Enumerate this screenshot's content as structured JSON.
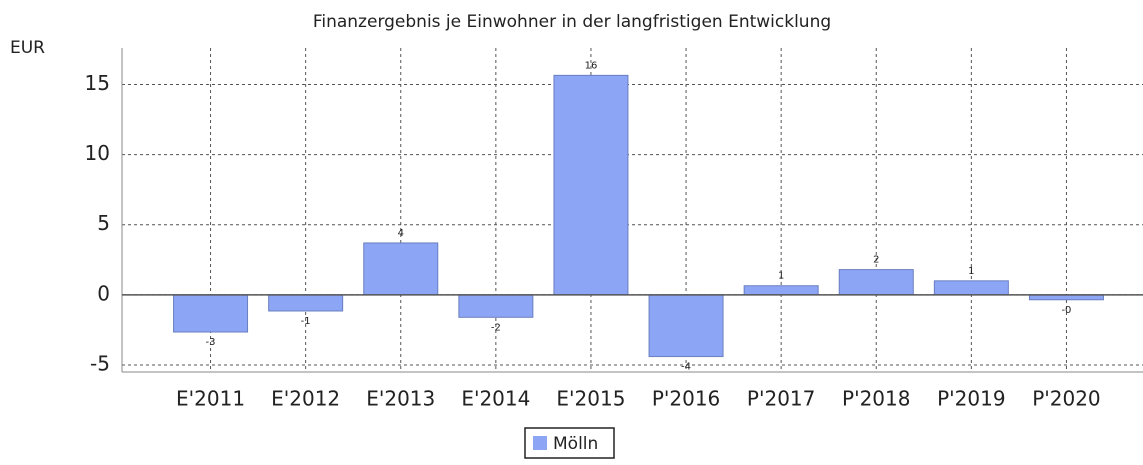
{
  "chart_data": {
    "type": "bar",
    "title": "Finanzergebnis je Einwohner in der langfristigen Entwicklung",
    "y_label": "EUR",
    "categories": [
      "E'2011",
      "E'2012",
      "E'2013",
      "E'2014",
      "E'2015",
      "P'2016",
      "P'2017",
      "P'2018",
      "P'2019",
      "P'2020"
    ],
    "series": [
      {
        "name": "Mölln",
        "color": "#8ca5f5",
        "values": [
          -2.65,
          -1.15,
          3.7,
          -1.6,
          15.65,
          -4.4,
          0.65,
          1.8,
          1.0,
          -0.35
        ],
        "value_labels": [
          "-3",
          "-1",
          "4",
          "-2",
          "16",
          "-4",
          "1",
          "2",
          "1",
          "-0"
        ]
      }
    ],
    "ylim": [
      -5.5,
      17.6
    ],
    "yticks": [
      -5,
      0,
      5,
      10,
      15
    ],
    "grid": true
  }
}
